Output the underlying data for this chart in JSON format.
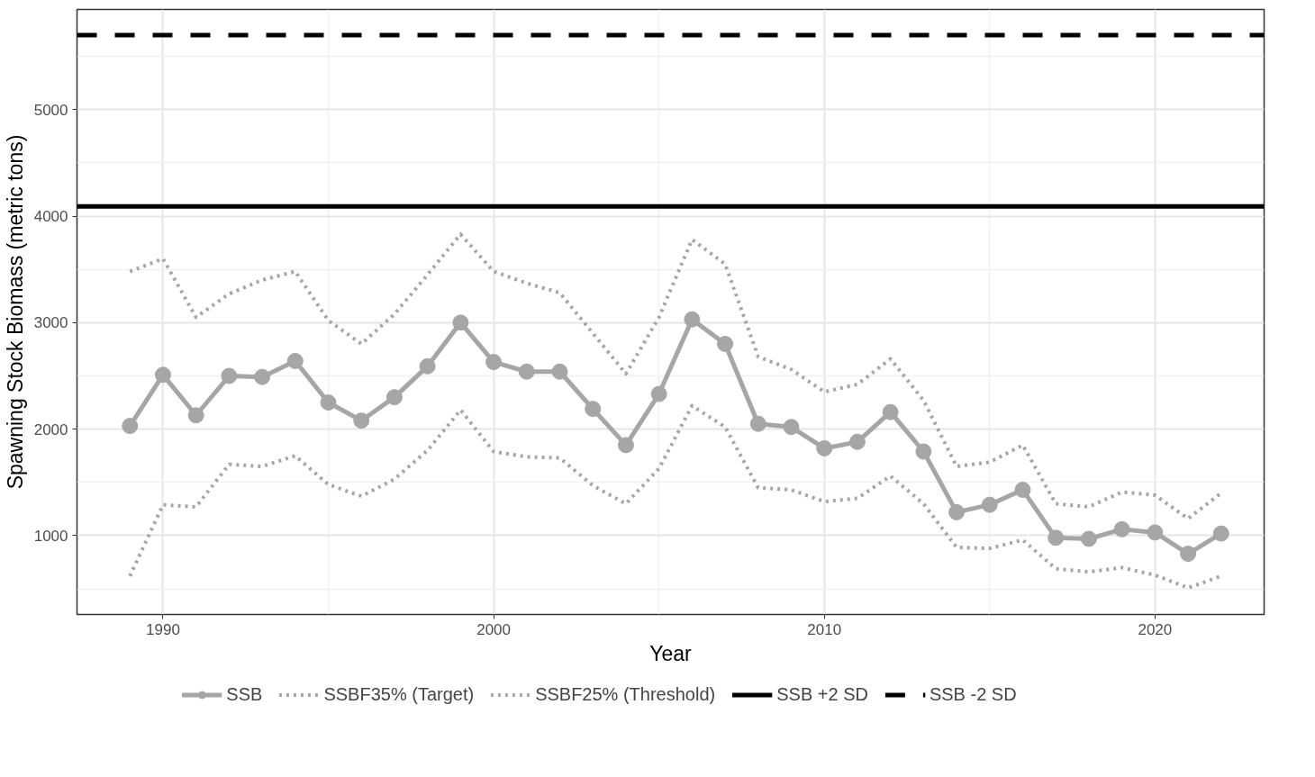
{
  "chart_data": {
    "type": "line",
    "xlabel": "Year",
    "ylabel": "Spawning Stock Biomass (metric tons)",
    "x": [
      1989,
      1990,
      1991,
      1992,
      1993,
      1994,
      1995,
      1996,
      1997,
      1998,
      1999,
      2000,
      2001,
      2002,
      2003,
      2004,
      2005,
      2006,
      2007,
      2008,
      2009,
      2010,
      2011,
      2012,
      2013,
      2014,
      2015,
      2016,
      2017,
      2018,
      2019,
      2020,
      2021,
      2022
    ],
    "series": [
      {
        "name": "SSB",
        "color": "#a6a6a6",
        "marker": "circle",
        "line_style": "solid",
        "values": [
          2030,
          2510,
          2130,
          2500,
          2490,
          2640,
          2250,
          2080,
          2300,
          2590,
          3000,
          2630,
          2540,
          2540,
          2190,
          1850,
          2330,
          3030,
          2800,
          2050,
          2020,
          1820,
          1880,
          2160,
          1790,
          1220,
          1290,
          1430,
          980,
          970,
          1060,
          1030,
          830,
          1020
        ]
      },
      {
        "name": "SSBF35% (Target)",
        "color": "#a6a6a6",
        "marker": "none",
        "line_style": "dotted",
        "values": [
          3480,
          3600,
          3050,
          3270,
          3400,
          3480,
          3020,
          2800,
          3080,
          3450,
          3830,
          3480,
          3370,
          3280,
          2900,
          2520,
          3050,
          3780,
          3550,
          2680,
          2560,
          2350,
          2420,
          2660,
          2270,
          1650,
          1690,
          1850,
          1300,
          1270,
          1410,
          1380,
          1160,
          1400
        ]
      },
      {
        "name": "SSBF25% (Threshold)",
        "color": "#a6a6a6",
        "marker": "none",
        "line_style": "dotted",
        "values": [
          620,
          1290,
          1270,
          1670,
          1650,
          1750,
          1480,
          1370,
          1530,
          1800,
          2180,
          1790,
          1740,
          1730,
          1470,
          1300,
          1630,
          2220,
          2020,
          1450,
          1430,
          1320,
          1350,
          1560,
          1300,
          890,
          880,
          960,
          690,
          660,
          700,
          630,
          510,
          620
        ]
      }
    ],
    "ref_lines": [
      {
        "axis": "y",
        "value": 4090,
        "label": "SSB +2 SD",
        "color": "#000000",
        "line_style": "solid"
      },
      {
        "axis": "y",
        "value": 5700,
        "label": "SSB -2 SD",
        "color": "#000000",
        "line_style": "dashed"
      }
    ],
    "xlim": [
      1987.4,
      2023.3
    ],
    "ylim": [
      260,
      5940
    ],
    "xticks": [
      1990,
      2000,
      2010,
      2020
    ],
    "yticks": [
      1000,
      2000,
      3000,
      4000,
      5000
    ],
    "grid": true,
    "legend": "bottom"
  }
}
